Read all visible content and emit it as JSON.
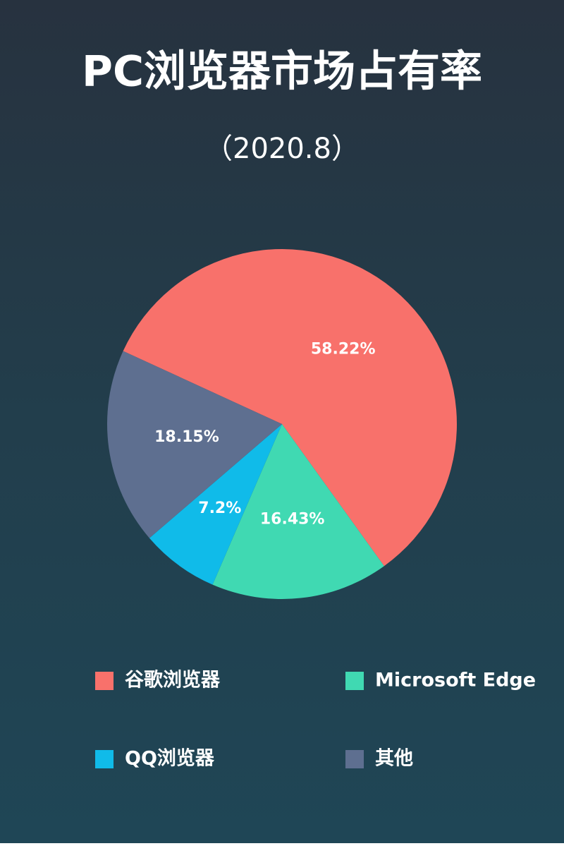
{
  "chart_data": {
    "type": "pie",
    "title": "PC浏览器市场占有率",
    "subtitle": "（2020.8）",
    "categories": [
      "谷歌浏览器",
      "Microsoft Edge",
      "QQ浏览器",
      "其他"
    ],
    "values": [
      58.22,
      16.43,
      7.2,
      18.15
    ],
    "value_labels": [
      "58.22%",
      "16.43%",
      "7.2%",
      "18.15%"
    ],
    "colors": [
      "#f8716b",
      "#40d9b2",
      "#10bbe9",
      "#5e6f90"
    ]
  }
}
